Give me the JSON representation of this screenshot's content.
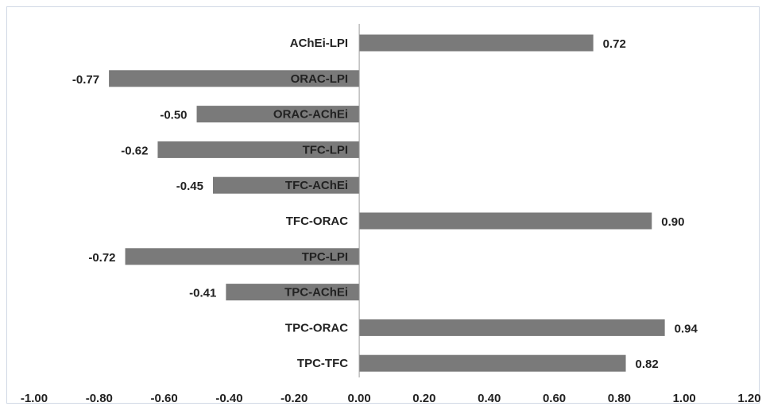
{
  "chart_data": {
    "type": "bar",
    "orientation": "horizontal",
    "categories": [
      "AChEi-LPI",
      "ORAC-LPI",
      "ORAC-AChEi",
      "TFC-LPI",
      "TFC-AChEi",
      "TFC-ORAC",
      "TPC-LPI",
      "TPC-AChEi",
      "TPC-ORAC",
      "TPC-TFC"
    ],
    "values": [
      0.72,
      -0.77,
      -0.5,
      -0.62,
      -0.45,
      0.9,
      -0.72,
      -0.41,
      0.94,
      0.82
    ],
    "value_labels": [
      "0.72",
      "-0.77",
      "-0.50",
      "-0.62",
      "-0.45",
      "0.90",
      "-0.72",
      "-0.41",
      "0.94",
      "0.82"
    ],
    "xlim": [
      -1.0,
      1.2
    ],
    "x_ticks": [
      -1.0,
      -0.8,
      -0.6,
      -0.4,
      -0.2,
      0.0,
      0.2,
      0.4,
      0.6,
      0.8,
      1.0,
      1.2
    ],
    "x_tick_labels": [
      "-1.00",
      "-0.80",
      "-0.60",
      "-0.40",
      "-0.20",
      "0.00",
      "0.20",
      "0.40",
      "0.60",
      "0.80",
      "1.00",
      "1.20"
    ],
    "title": "",
    "xlabel": "",
    "ylabel": "",
    "grid": false,
    "legend": "none",
    "colors": {
      "bar": "#7a7a7a",
      "axis": "#9a9a9a",
      "text": "#222222"
    }
  }
}
